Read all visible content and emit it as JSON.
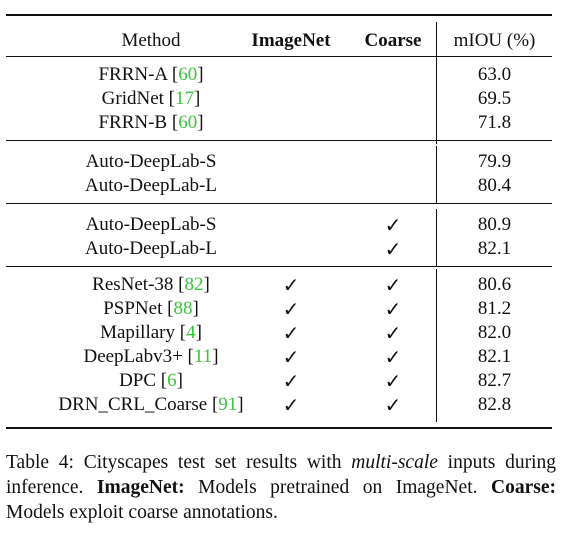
{
  "table": {
    "headers": {
      "method": "Method",
      "imagenet": "ImageNet",
      "coarse": "Coarse",
      "miou": "mIOU (%)"
    },
    "check_symbol": "✓",
    "groups": [
      {
        "rows": [
          {
            "name": "FRRN-A [",
            "cite": "60",
            "close": "]",
            "imagenet": "",
            "coarse": "",
            "miou": "63.0"
          },
          {
            "name": "GridNet [",
            "cite": "17",
            "close": "]",
            "imagenet": "",
            "coarse": "",
            "miou": "69.5"
          },
          {
            "name": "FRRN-B [",
            "cite": "60",
            "close": "]",
            "imagenet": "",
            "coarse": "",
            "miou": "71.8"
          }
        ]
      },
      {
        "rows": [
          {
            "name": "Auto-DeepLab-S",
            "cite": "",
            "close": "",
            "imagenet": "",
            "coarse": "",
            "miou": "79.9"
          },
          {
            "name": "Auto-DeepLab-L",
            "cite": "",
            "close": "",
            "imagenet": "",
            "coarse": "",
            "miou": "80.4"
          }
        ]
      },
      {
        "rows": [
          {
            "name": "Auto-DeepLab-S",
            "cite": "",
            "close": "",
            "imagenet": "",
            "coarse": "✓",
            "miou": "80.9"
          },
          {
            "name": "Auto-DeepLab-L",
            "cite": "",
            "close": "",
            "imagenet": "",
            "coarse": "✓",
            "miou": "82.1"
          }
        ]
      },
      {
        "rows": [
          {
            "name": "ResNet-38 [",
            "cite": "82",
            "close": "]",
            "imagenet": "✓",
            "coarse": "✓",
            "miou": "80.6"
          },
          {
            "name": "PSPNet [",
            "cite": "88",
            "close": "]",
            "imagenet": "✓",
            "coarse": "✓",
            "miou": "81.2"
          },
          {
            "name": "Mapillary [",
            "cite": "4",
            "close": "]",
            "imagenet": "✓",
            "coarse": "✓",
            "miou": "82.0"
          },
          {
            "name": "DeepLabv3+ [",
            "cite": "11",
            "close": "]",
            "imagenet": "✓",
            "coarse": "✓",
            "miou": "82.1"
          },
          {
            "name": "DPC [",
            "cite": "6",
            "close": "]",
            "imagenet": "✓",
            "coarse": "✓",
            "miou": "82.7"
          },
          {
            "name": "DRN_CRL_Coarse [",
            "cite": "91",
            "close": "]",
            "imagenet": "✓",
            "coarse": "✓",
            "miou": "82.8"
          }
        ]
      }
    ]
  },
  "caption": {
    "label": "Table 4:",
    "t1": " Cityscapes test set results with ",
    "emph": "multi-scale",
    "t2": " inputs during inference. ",
    "b1": "ImageNet:",
    "t3": " Models pretrained on ImageNet. ",
    "b2": "Coarse:",
    "t4": " Models exploit coarse annotations."
  }
}
